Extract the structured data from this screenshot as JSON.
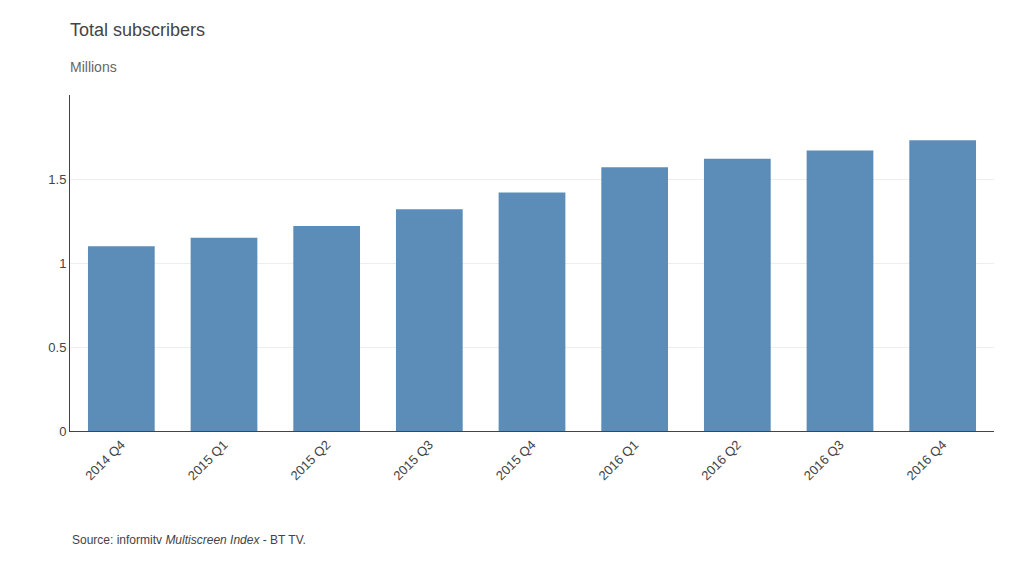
{
  "chart_data": {
    "type": "bar",
    "title": "Total subscribers",
    "subtitle": "Millions",
    "categories": [
      "2014 Q4",
      "2015 Q1",
      "2015 Q2",
      "2015 Q3",
      "2015 Q4",
      "2016 Q1",
      "2016 Q2",
      "2016 Q3",
      "2016 Q4"
    ],
    "values": [
      1.1,
      1.15,
      1.22,
      1.32,
      1.42,
      1.57,
      1.62,
      1.67,
      1.73
    ],
    "color": "#5b8db8",
    "ylim": [
      0,
      2.0
    ],
    "yticks": [
      0,
      0.5,
      1,
      1.5
    ],
    "grid": true,
    "annotations": [
      "Source: informitv ",
      "Multiscreen Index",
      " - BT TV."
    ]
  }
}
